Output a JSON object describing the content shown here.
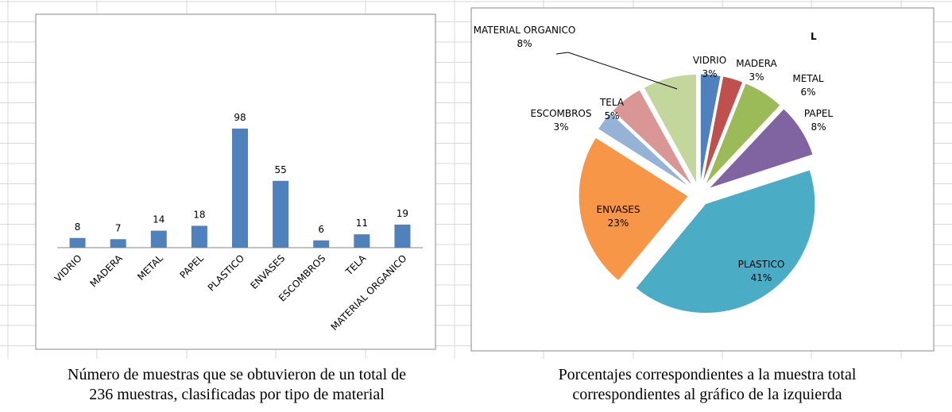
{
  "chart_data": [
    {
      "type": "bar",
      "categories": [
        "VIDRIO",
        "MADERA",
        "METAL",
        "PAPEL",
        "PLASTICO",
        "ENVASES",
        "ESCOMBROS",
        "TELA",
        "MATERIAL ORGANICO"
      ],
      "values": [
        8,
        7,
        14,
        18,
        98,
        55,
        6,
        11,
        19
      ],
      "color": "#4f81bd",
      "caption": [
        "Número de muestras que se obtuvieron de un total de",
        "236 muestras, clasificadas por tipo de material"
      ]
    },
    {
      "type": "pie",
      "title": "L",
      "categories": [
        "VIDRIO",
        "MADERA",
        "METAL",
        "PAPEL",
        "PLASTICO",
        "ENVASES",
        "ESCOMBROS",
        "TELA",
        "MATERIAL ORGANICO"
      ],
      "values": [
        3,
        3,
        6,
        8,
        41,
        23,
        3,
        5,
        8
      ],
      "value_labels": [
        "3%",
        "3%",
        "6%",
        "8%",
        "41%",
        "23%",
        "3%",
        "5%",
        "8%"
      ],
      "colors": [
        "#4f81bd",
        "#c0504d",
        "#9bbb59",
        "#8064a2",
        "#4bacc6",
        "#f79646",
        "#95b3d7",
        "#d99694",
        "#c3d69b"
      ],
      "caption": [
        "Porcentajes correspondientes a la muestra total",
        "correspondientes al gráfico de la izquierda"
      ]
    }
  ]
}
